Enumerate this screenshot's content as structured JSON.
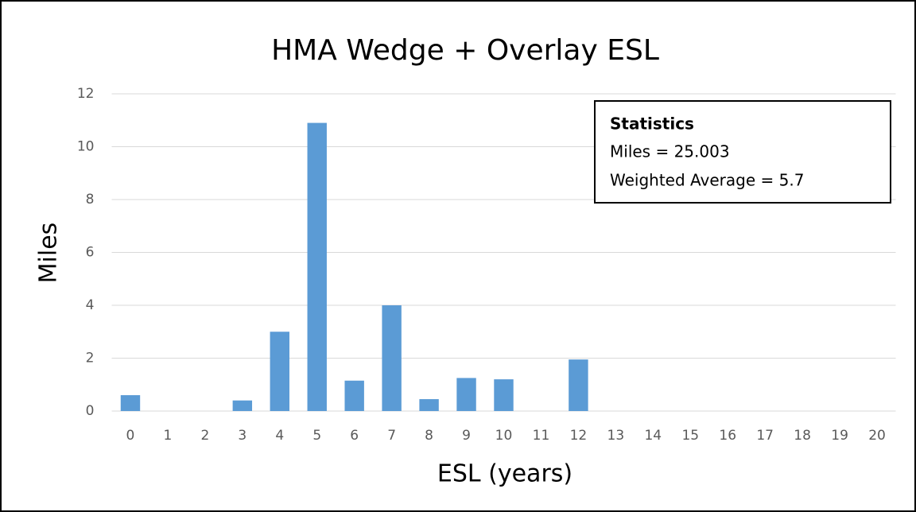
{
  "chart_data": {
    "type": "bar",
    "title": "HMA Wedge + Overlay ESL",
    "x_label": "ESL (years)",
    "y_label": "Miles",
    "categories": [
      "0",
      "1",
      "2",
      "3",
      "4",
      "5",
      "6",
      "7",
      "8",
      "9",
      "10",
      "11",
      "12",
      "13",
      "14",
      "15",
      "16",
      "17",
      "18",
      "19",
      "20"
    ],
    "values": [
      0.6,
      0,
      0,
      0.4,
      3.0,
      10.9,
      1.15,
      4.0,
      0.45,
      1.25,
      1.2,
      0,
      1.95,
      0,
      0,
      0,
      0,
      0,
      0,
      0,
      0
    ],
    "color": "#5b9bd5",
    "ylim": [
      0,
      12
    ],
    "yticks": [
      0,
      2,
      4,
      6,
      8,
      10,
      12
    ],
    "grid": true,
    "annotation": {
      "title": "Statistics",
      "lines": [
        "Miles = 25.003",
        "Weighted Average = 5.7"
      ]
    }
  }
}
